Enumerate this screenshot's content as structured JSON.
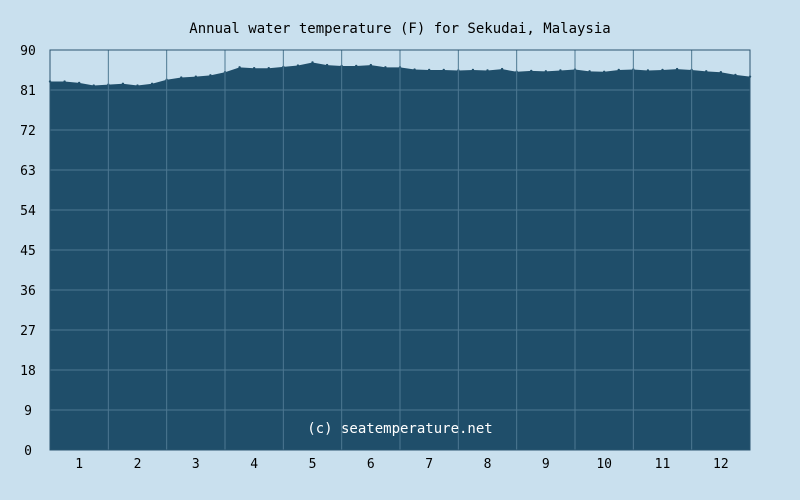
{
  "chart_data": {
    "type": "area",
    "title": "Annual water temperature (F) for Sekudai, Malaysia",
    "xlabel": "",
    "ylabel": "",
    "xlim": [
      0.5,
      12.5
    ],
    "ylim": [
      0,
      90
    ],
    "xticks": [
      "1",
      "2",
      "3",
      "4",
      "5",
      "6",
      "7",
      "8",
      "9",
      "10",
      "11",
      "12"
    ],
    "yticks": [
      "0",
      "9",
      "18",
      "27",
      "36",
      "45",
      "54",
      "63",
      "72",
      "81",
      "90"
    ],
    "grid": true,
    "legend": "none",
    "colors": {
      "background": "#c9e0ee",
      "fill": "#1f4e6a",
      "grid": "#4d7892",
      "axis": "#2a5570"
    },
    "series": [
      {
        "x": [
          0.5,
          0.75,
          1.0,
          1.25,
          1.5,
          1.75,
          2.0,
          2.25,
          2.5,
          2.75,
          3.0,
          3.25,
          3.5,
          3.75,
          4.0,
          4.25,
          4.5,
          4.75,
          5.0,
          5.25,
          5.5,
          5.75,
          6.0,
          6.25,
          6.5,
          6.75,
          7.0,
          7.25,
          7.5,
          7.75,
          8.0,
          8.25,
          8.5,
          8.75,
          9.0,
          9.25,
          9.5,
          9.75,
          10.0,
          10.25,
          10.5,
          10.75,
          11.0,
          11.25,
          11.5,
          11.75,
          12.0,
          12.25,
          12.5
        ],
        "values": [
          82.9,
          82.9,
          82.6,
          82.0,
          82.2,
          82.4,
          82.0,
          82.4,
          83.3,
          83.8,
          84.0,
          84.3,
          85.0,
          86.1,
          85.9,
          85.9,
          86.2,
          86.5,
          87.2,
          86.6,
          86.4,
          86.4,
          86.6,
          86.1,
          86.1,
          85.6,
          85.5,
          85.5,
          85.4,
          85.5,
          85.4,
          85.7,
          85.1,
          85.3,
          85.2,
          85.4,
          85.6,
          85.2,
          85.1,
          85.5,
          85.6,
          85.4,
          85.5,
          85.7,
          85.5,
          85.2,
          85.0,
          84.4,
          84.0
        ]
      }
    ],
    "watermark": "(c) seatemperature.net"
  }
}
